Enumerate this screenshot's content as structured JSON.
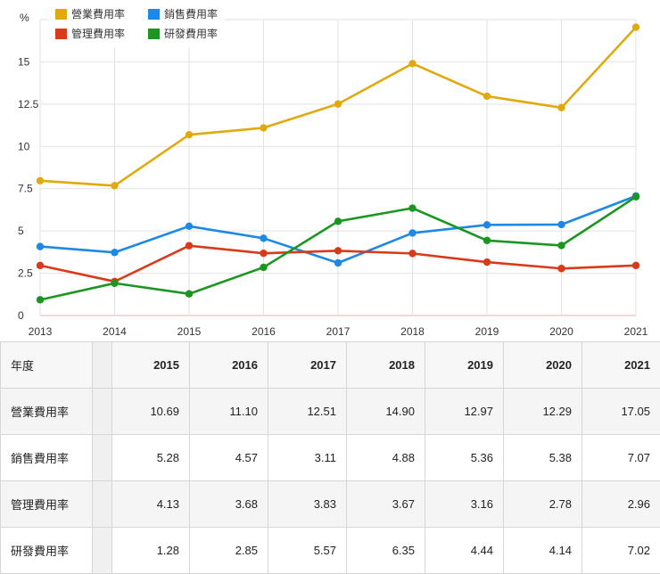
{
  "chart_data": {
    "type": "line",
    "ylabel": "%",
    "ylim": [
      0,
      17.5
    ],
    "y_ticks": [
      0,
      2.5,
      5,
      7.5,
      10,
      12.5,
      15
    ],
    "y_tick_labels": [
      "0",
      "2.5",
      "5",
      "7.5",
      "10",
      "12.5",
      "15"
    ],
    "x": [
      "2013",
      "2014",
      "2015",
      "2016",
      "2017",
      "2018",
      "2019",
      "2020",
      "2021"
    ],
    "legend": "top-left",
    "grid": true,
    "series": [
      {
        "name": "營業費用率",
        "color": "#e0aa0f",
        "values": [
          7.97,
          7.68,
          10.69,
          11.1,
          12.51,
          14.9,
          12.97,
          12.29,
          17.05
        ]
      },
      {
        "name": "銷售費用率",
        "color": "#1e88e5",
        "values": [
          4.08,
          3.73,
          5.28,
          4.57,
          3.11,
          4.88,
          5.36,
          5.38,
          7.07
        ]
      },
      {
        "name": "管理費用率",
        "color": "#d93a1a",
        "values": [
          2.96,
          2.01,
          4.13,
          3.68,
          3.83,
          3.67,
          3.16,
          2.78,
          2.96
        ]
      },
      {
        "name": "研發費用率",
        "color": "#1a9621",
        "values": [
          0.93,
          1.91,
          1.28,
          2.85,
          5.57,
          6.35,
          4.44,
          4.14,
          7.02
        ]
      }
    ]
  },
  "table": {
    "corner": "年度",
    "years": [
      "2015",
      "2016",
      "2017",
      "2018",
      "2019",
      "2020",
      "2021"
    ],
    "rows": [
      {
        "label": "營業費用率",
        "values": [
          "10.69",
          "11.10",
          "12.51",
          "14.90",
          "12.97",
          "12.29",
          "17.05"
        ]
      },
      {
        "label": "銷售費用率",
        "values": [
          "5.28",
          "4.57",
          "3.11",
          "4.88",
          "5.36",
          "5.38",
          "7.07"
        ]
      },
      {
        "label": "管理費用率",
        "values": [
          "4.13",
          "3.68",
          "3.83",
          "3.67",
          "3.16",
          "2.78",
          "2.96"
        ]
      },
      {
        "label": "研發費用率",
        "values": [
          "1.28",
          "2.85",
          "5.57",
          "6.35",
          "4.44",
          "4.14",
          "7.02"
        ]
      }
    ]
  }
}
